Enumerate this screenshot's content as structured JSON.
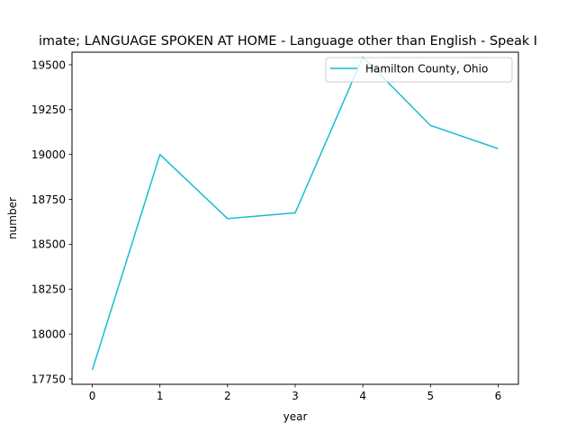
{
  "chart_data": {
    "type": "line",
    "title": "imate; LANGUAGE SPOKEN AT HOME - Language other than English - Speak I",
    "xlabel": "year",
    "ylabel": "number",
    "x": [
      0,
      1,
      2,
      3,
      4,
      5,
      6
    ],
    "xlim": [
      -0.3,
      6.3
    ],
    "ylim": [
      17720,
      19570
    ],
    "xticks": [
      0,
      1,
      2,
      3,
      4,
      5,
      6
    ],
    "yticks": [
      17750,
      18000,
      18250,
      18500,
      18750,
      19000,
      19250,
      19500
    ],
    "grid": false,
    "legend": "top-right",
    "series": [
      {
        "name": "Hamilton County, Ohio",
        "color": "#17becf",
        "values": [
          17800,
          19000,
          18643,
          18675,
          19543,
          19162,
          19033
        ]
      }
    ]
  }
}
